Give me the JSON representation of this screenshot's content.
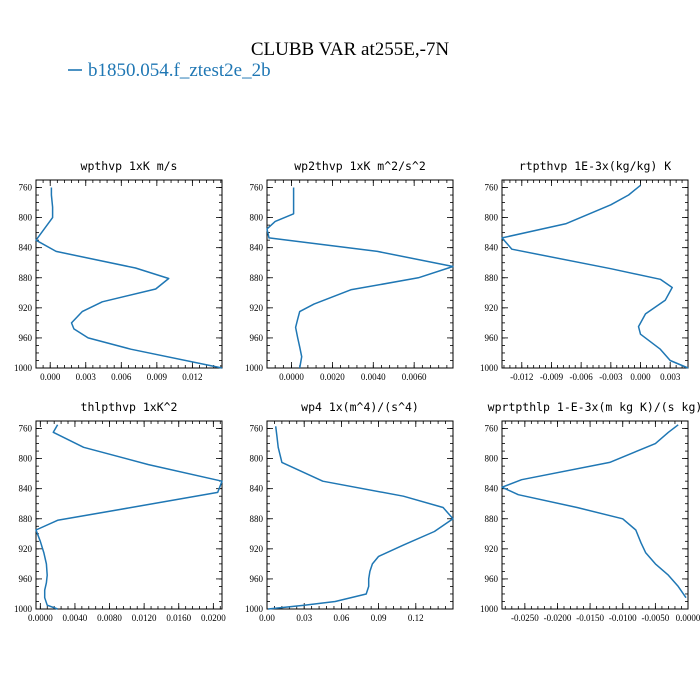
{
  "figure": {
    "title": "CLUBB VAR at255E,-7N",
    "legend": [
      {
        "label": "b1850.054.f_ztest2e_2b",
        "color": "#1f77b4"
      }
    ]
  },
  "chart_data": [
    {
      "type": "line",
      "title": "wpthvp  1xK m/s",
      "y_axis": "pressure (inverted)",
      "ylim": [
        1000,
        750
      ],
      "xlim": [
        -0.0012,
        0.0145
      ],
      "xticks": [
        "0.000",
        "0.003",
        "0.006",
        "0.009",
        "0.012"
      ],
      "xtick_values": [
        0,
        0.003,
        0.006,
        0.009,
        0.012
      ],
      "yticks": [
        "760",
        "800",
        "840",
        "880",
        "920",
        "960",
        "1000"
      ],
      "ytick_values": [
        760,
        800,
        840,
        880,
        920,
        960,
        1000
      ],
      "series": [
        {
          "color": "#1f77b4",
          "x": [
            0.0001,
            0.0001,
            0.0002,
            0.0002,
            -0.0012,
            0.0005,
            0.0072,
            0.01,
            0.0089,
            0.0044,
            0.0027,
            0.0018,
            0.002,
            0.0032,
            0.0068,
            0.0145
          ],
          "y": [
            760,
            770,
            786,
            800,
            830,
            845,
            867,
            881,
            895,
            912,
            925,
            940,
            948,
            960,
            975,
            1000
          ]
        }
      ]
    },
    {
      "type": "line",
      "title": "wp2thvp  1xK m^2/s^2",
      "y_axis": "pressure (inverted)",
      "ylim": [
        1000,
        750
      ],
      "xlim": [
        -0.0012,
        0.0079
      ],
      "xticks": [
        "0.0000",
        "0.0020",
        "0.0040",
        "0.0060"
      ],
      "xtick_values": [
        0,
        0.002,
        0.004,
        0.006
      ],
      "yticks": [
        "760",
        "800",
        "840",
        "880",
        "920",
        "960",
        "1000"
      ],
      "ytick_values": [
        760,
        800,
        840,
        880,
        920,
        960,
        1000
      ],
      "series": [
        {
          "color": "#1f77b4",
          "x": [
            0.0001,
            0.0001,
            0.0001,
            -0.0008,
            -0.0012,
            -0.0011,
            0.0042,
            0.0079,
            0.0062,
            0.0029,
            0.0011,
            0.0004,
            0.0003,
            0.0002,
            0.0003,
            0.0004,
            0.0005,
            0.0004
          ],
          "y": [
            760,
            775,
            795,
            805,
            815,
            827,
            845,
            865,
            880,
            896,
            915,
            925,
            935,
            946,
            960,
            972,
            985,
            1000
          ]
        }
      ]
    },
    {
      "type": "line",
      "title": "rtpthvp  1E-3x(kg/kg) K",
      "y_axis": "pressure (inverted)",
      "ylim": [
        1000,
        750
      ],
      "xlim": [
        -0.014,
        0.0048
      ],
      "xticks": [
        "-0.012",
        "-0.009",
        "-0.006",
        "-0.003",
        "0.000",
        "0.003"
      ],
      "xtick_values": [
        -0.012,
        -0.009,
        -0.006,
        -0.003,
        0,
        0.003
      ],
      "yticks": [
        "760",
        "800",
        "840",
        "880",
        "920",
        "960",
        "1000"
      ],
      "ytick_values": [
        760,
        800,
        840,
        880,
        920,
        960,
        1000
      ],
      "series": [
        {
          "color": "#1f77b4",
          "x": [
            0.0,
            -0.0012,
            -0.003,
            -0.0075,
            -0.014,
            -0.013,
            -0.003,
            0.002,
            0.0032,
            0.0025,
            0.0005,
            -0.0002,
            0.0,
            0.001,
            0.002,
            0.003,
            0.0048
          ],
          "y": [
            757,
            770,
            783,
            808,
            827,
            842,
            868,
            882,
            893,
            910,
            928,
            945,
            955,
            965,
            975,
            990,
            1000
          ]
        }
      ]
    },
    {
      "type": "line",
      "title": "thlpthvp  1xK^2",
      "y_axis": "pressure (inverted)",
      "ylim": [
        1000,
        750
      ],
      "xlim": [
        -0.0005,
        0.021
      ],
      "xticks": [
        "0.0000",
        "0.0040",
        "0.0080",
        "0.0120",
        "0.0160",
        "0.0200"
      ],
      "xtick_values": [
        0,
        0.004,
        0.008,
        0.012,
        0.016,
        0.02
      ],
      "yticks": [
        "760",
        "800",
        "840",
        "880",
        "920",
        "960",
        "1000"
      ],
      "ytick_values": [
        760,
        800,
        840,
        880,
        920,
        960,
        1000
      ],
      "series": [
        {
          "color": "#1f77b4",
          "x": [
            0.002,
            0.0015,
            0.005,
            0.0125,
            0.021,
            0.0205,
            0.0105,
            0.002,
            -0.0005,
            0.0,
            0.0004,
            0.0007,
            0.0008,
            0.0007,
            0.0005,
            0.0005,
            0.0008,
            0.002
          ],
          "y": [
            755,
            765,
            785,
            808,
            830,
            845,
            865,
            882,
            895,
            910,
            925,
            940,
            955,
            965,
            975,
            985,
            995,
            1000
          ]
        }
      ]
    },
    {
      "type": "line",
      "title": "wp4  1x(m^4)/(s^4)",
      "y_axis": "pressure (inverted)",
      "ylim": [
        1000,
        750
      ],
      "xlim": [
        0.0,
        0.15
      ],
      "xticks": [
        "0.00",
        "0.03",
        "0.06",
        "0.09",
        "0.12"
      ],
      "xtick_values": [
        0,
        0.03,
        0.06,
        0.09,
        0.12
      ],
      "yticks": [
        "760",
        "800",
        "840",
        "880",
        "920",
        "960",
        "1000"
      ],
      "ytick_values": [
        760,
        800,
        840,
        880,
        920,
        960,
        1000
      ],
      "series": [
        {
          "color": "#1f77b4",
          "x": [
            0.007,
            0.008,
            0.009,
            0.012,
            0.045,
            0.11,
            0.142,
            0.15,
            0.135,
            0.11,
            0.09,
            0.085,
            0.083,
            0.082,
            0.082,
            0.08,
            0.055,
            0.03,
            0.001
          ],
          "y": [
            757,
            770,
            785,
            805,
            830,
            850,
            865,
            880,
            897,
            915,
            930,
            940,
            950,
            960,
            970,
            980,
            990,
            995,
            1000
          ]
        }
      ]
    },
    {
      "type": "line",
      "title": "wprtpthlp  1-E-3x(m kg K)/(s kg)",
      "y_axis": "pressure (inverted)",
      "ylim": [
        1000,
        750
      ],
      "xlim": [
        -0.0285,
        0.0
      ],
      "xticks": [
        "-0.0250",
        "-0.0200",
        "-0.0150",
        "-0.0100",
        "-0.0050",
        "0.0000"
      ],
      "xtick_values": [
        -0.025,
        -0.02,
        -0.015,
        -0.01,
        -0.005,
        0
      ],
      "yticks": [
        "760",
        "800",
        "840",
        "880",
        "920",
        "960",
        "1000"
      ],
      "ytick_values": [
        760,
        800,
        840,
        880,
        920,
        960,
        1000
      ],
      "series": [
        {
          "color": "#1f77b4",
          "x": [
            -0.0015,
            -0.003,
            -0.005,
            -0.012,
            -0.0255,
            -0.0285,
            -0.026,
            -0.017,
            -0.01,
            -0.008,
            -0.0072,
            -0.0065,
            -0.005,
            -0.003,
            -0.0015,
            -0.0003
          ],
          "y": [
            755,
            765,
            780,
            805,
            828,
            838,
            848,
            865,
            880,
            895,
            912,
            925,
            940,
            955,
            970,
            985
          ]
        }
      ]
    }
  ]
}
